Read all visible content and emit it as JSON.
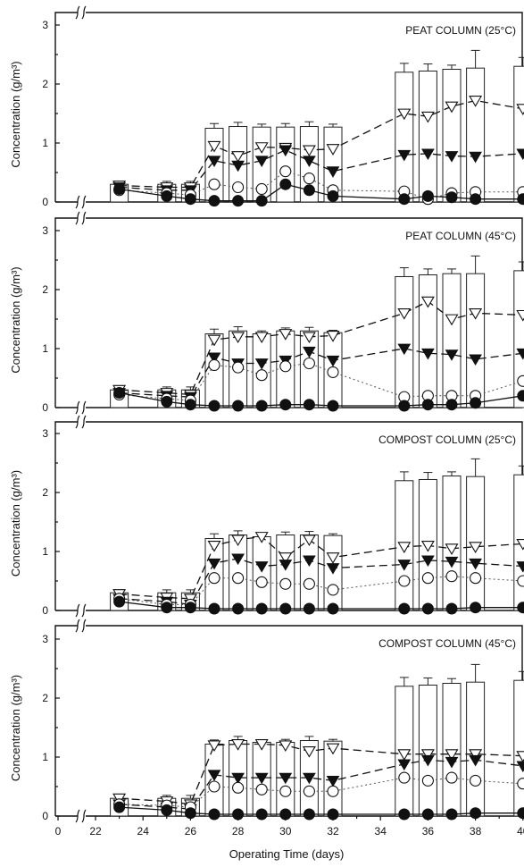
{
  "figure": {
    "xlabel": "Operating Time (days)",
    "ylabel": "Concentration (g/m³)",
    "xticks": [
      "0",
      "22",
      "24",
      "26",
      "28",
      "30",
      "32",
      "34",
      "36",
      "38",
      "40"
    ],
    "yticks": [
      "0",
      "1",
      "2",
      "3"
    ]
  },
  "chart_data": [
    {
      "type": "bar",
      "title": "PEAT COLUMN (25°C)",
      "x": [
        23,
        25,
        26,
        27,
        28,
        29,
        30,
        31,
        32,
        35,
        36,
        37,
        38,
        40
      ],
      "ylim": [
        0,
        3
      ],
      "x_axis_break": "0 to 22",
      "series": [
        {
          "style": "bar with error bar",
          "values": [
            0.3,
            0.3,
            0.3,
            1.25,
            1.28,
            1.27,
            1.27,
            1.28,
            1.27,
            2.2,
            2.22,
            2.25,
            2.27,
            2.3
          ],
          "errors": [
            0.05,
            0.05,
            0.05,
            0.08,
            0.07,
            0.05,
            0.06,
            0.08,
            0.05,
            0.15,
            0.12,
            0.07,
            0.3,
            0.15
          ]
        },
        {
          "style": "open triangle, dashed line",
          "values": [
            0.28,
            0.25,
            0.25,
            0.95,
            0.78,
            0.93,
            0.92,
            0.88,
            0.9,
            1.5,
            1.45,
            1.62,
            1.72,
            1.58
          ]
        },
        {
          "style": "filled triangle, dashed line",
          "values": [
            0.25,
            0.2,
            0.2,
            0.7,
            0.62,
            0.7,
            0.88,
            0.7,
            0.52,
            0.8,
            0.82,
            0.78,
            0.77,
            0.82
          ]
        },
        {
          "style": "open circle, dotted line",
          "values": [
            0.2,
            0.15,
            0.12,
            0.3,
            0.25,
            0.22,
            0.52,
            0.4,
            0.2,
            0.18,
            0.05,
            0.15,
            0.17,
            0.17
          ]
        },
        {
          "style": "filled circle, solid line",
          "values": [
            0.22,
            0.1,
            0.05,
            0.02,
            0.02,
            0.02,
            0.3,
            0.2,
            0.1,
            0.05,
            0.1,
            0.08,
            0.05,
            0.05
          ]
        }
      ]
    },
    {
      "type": "bar",
      "title": "PEAT COLUMN (45°C)",
      "x": [
        23,
        25,
        26,
        27,
        28,
        29,
        30,
        31,
        32,
        35,
        36,
        37,
        38,
        40
      ],
      "ylim": [
        0,
        3
      ],
      "x_axis_break": "0 to 22",
      "series": [
        {
          "style": "bar with error bar",
          "values": [
            0.3,
            0.3,
            0.3,
            1.25,
            1.3,
            1.25,
            1.3,
            1.3,
            1.27,
            2.22,
            2.25,
            2.27,
            2.27,
            2.32
          ],
          "errors": [
            0.05,
            0.05,
            0.05,
            0.08,
            0.07,
            0.05,
            0.05,
            0.06,
            0.04,
            0.15,
            0.1,
            0.08,
            0.3,
            0.15
          ]
        },
        {
          "style": "open triangle, dashed line",
          "values": [
            0.3,
            0.25,
            0.22,
            1.15,
            1.2,
            1.2,
            1.25,
            1.2,
            1.22,
            1.6,
            1.8,
            1.5,
            1.6,
            1.57
          ]
        },
        {
          "style": "filled triangle, dashed line",
          "values": [
            0.25,
            0.2,
            0.18,
            0.85,
            0.75,
            0.75,
            0.8,
            0.95,
            0.8,
            1.0,
            0.92,
            0.9,
            0.82,
            0.92
          ]
        },
        {
          "style": "open circle, dotted line",
          "values": [
            0.22,
            0.15,
            0.12,
            0.72,
            0.68,
            0.55,
            0.7,
            0.75,
            0.6,
            0.18,
            0.2,
            0.2,
            0.2,
            0.45
          ]
        },
        {
          "style": "filled circle, solid line",
          "values": [
            0.25,
            0.1,
            0.05,
            0.03,
            0.03,
            0.03,
            0.05,
            0.05,
            0.03,
            0.03,
            0.05,
            0.05,
            0.08,
            0.2
          ]
        }
      ]
    },
    {
      "type": "bar",
      "title": "COMPOST COLUMN (25°C)",
      "x": [
        23,
        25,
        26,
        27,
        28,
        29,
        30,
        31,
        32,
        35,
        36,
        37,
        38,
        40
      ],
      "ylim": [
        0,
        3
      ],
      "x_axis_break": "0 to 22",
      "series": [
        {
          "style": "bar with error bar",
          "values": [
            0.3,
            0.3,
            0.3,
            1.22,
            1.28,
            1.25,
            1.28,
            1.28,
            1.27,
            2.2,
            2.22,
            2.28,
            2.27,
            2.3
          ],
          "errors": [
            0.05,
            0.05,
            0.05,
            0.08,
            0.07,
            0.05,
            0.05,
            0.06,
            0.03,
            0.15,
            0.12,
            0.07,
            0.3,
            0.15
          ]
        },
        {
          "style": "open triangle, dashed line",
          "values": [
            0.28,
            0.22,
            0.2,
            1.1,
            1.2,
            1.25,
            0.9,
            1.2,
            0.9,
            1.08,
            1.1,
            1.05,
            1.08,
            1.13
          ]
        },
        {
          "style": "filled triangle, dashed line",
          "values": [
            0.2,
            0.15,
            0.1,
            0.8,
            0.88,
            0.75,
            0.78,
            0.85,
            0.72,
            0.78,
            0.85,
            0.83,
            0.8,
            0.75
          ]
        },
        {
          "style": "open circle, dotted line",
          "values": [
            0.2,
            0.1,
            0.1,
            0.55,
            0.55,
            0.48,
            0.45,
            0.45,
            0.35,
            0.5,
            0.55,
            0.58,
            0.55,
            0.5
          ]
        },
        {
          "style": "filled circle, solid line",
          "values": [
            0.15,
            0.05,
            0.05,
            0.03,
            0.03,
            0.03,
            0.03,
            0.03,
            0.03,
            0.03,
            0.03,
            0.03,
            0.05,
            0.05
          ]
        }
      ]
    },
    {
      "type": "bar",
      "title": "COMPOST COLUMN (45°C)",
      "x": [
        23,
        25,
        26,
        27,
        28,
        29,
        30,
        31,
        32,
        35,
        36,
        37,
        38,
        40
      ],
      "ylim": [
        0,
        3
      ],
      "x_axis_break": "0 to 22",
      "series": [
        {
          "style": "bar with error bar",
          "values": [
            0.3,
            0.3,
            0.3,
            1.22,
            1.28,
            1.25,
            1.25,
            1.28,
            1.27,
            2.2,
            2.22,
            2.25,
            2.27,
            2.3
          ],
          "errors": [
            0.05,
            0.05,
            0.05,
            0.07,
            0.07,
            0.04,
            0.05,
            0.07,
            0.03,
            0.15,
            0.12,
            0.08,
            0.3,
            0.15
          ]
        },
        {
          "style": "open triangle, dashed line",
          "values": [
            0.3,
            0.25,
            0.2,
            1.2,
            1.22,
            1.22,
            1.2,
            1.1,
            1.15,
            1.05,
            1.05,
            1.05,
            1.05,
            1.02
          ]
        },
        {
          "style": "filled triangle, dashed line",
          "values": [
            0.2,
            0.15,
            0.12,
            0.7,
            0.65,
            0.65,
            0.65,
            0.65,
            0.6,
            0.88,
            0.95,
            0.92,
            0.95,
            0.85
          ]
        },
        {
          "style": "open circle, dotted line",
          "values": [
            0.2,
            0.18,
            0.15,
            0.5,
            0.48,
            0.45,
            0.42,
            0.42,
            0.42,
            0.65,
            0.6,
            0.65,
            0.6,
            0.55
          ]
        },
        {
          "style": "filled circle, solid line",
          "values": [
            0.15,
            0.1,
            0.05,
            0.03,
            0.03,
            0.03,
            0.03,
            0.03,
            0.03,
            0.03,
            0.03,
            0.03,
            0.05,
            0.05
          ]
        }
      ]
    }
  ]
}
